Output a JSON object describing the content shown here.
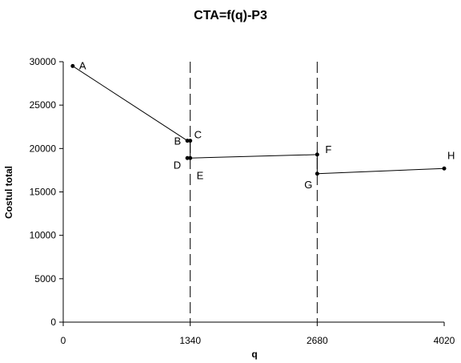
{
  "chart_data": {
    "type": "scatter",
    "title": "CTA=f(q)-P3",
    "xlabel": "q",
    "ylabel": "Costul total",
    "xlim": [
      0,
      4020
    ],
    "ylim": [
      0,
      30000
    ],
    "x_ticks": [
      0,
      1340,
      2680,
      4020
    ],
    "y_ticks": [
      0,
      5000,
      10000,
      15000,
      20000,
      25000,
      30000
    ],
    "grid": false,
    "legend": "none",
    "reference_lines_x": [
      1340,
      2680
    ],
    "points": [
      {
        "label": "A",
        "x": 100,
        "y": 29500
      },
      {
        "label": "B",
        "x": 1310,
        "y": 20900
      },
      {
        "label": "C",
        "x": 1340,
        "y": 20900
      },
      {
        "label": "D",
        "x": 1310,
        "y": 18900
      },
      {
        "label": "E",
        "x": 1340,
        "y": 18900
      },
      {
        "label": "F",
        "x": 2680,
        "y": 19300
      },
      {
        "label": "G",
        "x": 2680,
        "y": 17100
      },
      {
        "label": "H",
        "x": 4020,
        "y": 17700
      }
    ],
    "segments": [
      [
        "A",
        "B"
      ],
      [
        "B",
        "C"
      ],
      [
        "C",
        "E"
      ],
      [
        "D",
        "E"
      ],
      [
        "E",
        "F"
      ],
      [
        "F",
        "G"
      ],
      [
        "G",
        "H"
      ]
    ],
    "colors": {
      "line": "#000000",
      "marker": "#000000",
      "axis": "#000000"
    }
  }
}
